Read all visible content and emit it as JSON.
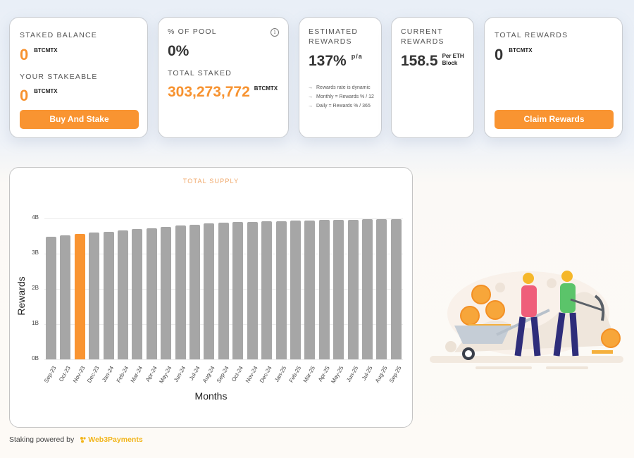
{
  "cards": {
    "staked_balance": {
      "label": "STAKED BALANCE",
      "value": "0",
      "unit": "BTCMTX",
      "stakeable_label": "YOUR STAKEABLE",
      "stakeable_value": "0",
      "stakeable_unit": "BTCMTX",
      "button": "Buy And Stake"
    },
    "pool": {
      "label": "% OF POOL",
      "value": "0%",
      "info_icon": "i",
      "total_label": "TOTAL STAKED",
      "total_value": "303,273,772",
      "total_unit": "BTCMTX"
    },
    "estimated": {
      "label_line1": "ESTIMATED",
      "label_line2": "REWARDS",
      "value": "137%",
      "unit": "p/a",
      "notes": [
        {
          "arrow": "→",
          "text": "Rewards rate is dynamic"
        },
        {
          "arrow": "→",
          "text": "Monthly = Rewards % / 12"
        },
        {
          "arrow": "→",
          "text": "Daily = Rewards % / 365"
        }
      ]
    },
    "current": {
      "label_line1": "CURRENT",
      "label_line2": "REWARDS",
      "value": "158.5",
      "unit_line1": "Per ETH",
      "unit_line2": "Block"
    },
    "total_rewards": {
      "label": "TOTAL REWARDS",
      "value": "0",
      "unit": "BTCMTX",
      "button": "Claim Rewards"
    }
  },
  "colors": {
    "accent": "#f99431",
    "bar": "#a6a6a6",
    "brand": "#f2b51a"
  },
  "chart_data": {
    "type": "bar",
    "title": "TOTAL SUPPLY",
    "xlabel": "Months",
    "ylabel": "Rewards",
    "ylim": [
      0,
      4
    ],
    "yticks": [
      "0B",
      "1B",
      "2B",
      "3B",
      "4B"
    ],
    "grid": true,
    "highlight_index": 2,
    "categories": [
      "Sep-23",
      "Oct-23",
      "Nov-23",
      "Dec-23",
      "Jan-24",
      "Feb-24",
      "Mar-24",
      "Apr-24",
      "May-24",
      "Jun-24",
      "Jul-24",
      "Aug-24",
      "Sep-24",
      "Oct-24",
      "Nov-24",
      "Dec-24",
      "Jan-25",
      "Feb-25",
      "Mar-25",
      "Apr-25",
      "May-25",
      "Jun-25",
      "Jul-25",
      "Aug-25",
      "Sep-25"
    ],
    "values": [
      3.48,
      3.52,
      3.56,
      3.6,
      3.63,
      3.66,
      3.7,
      3.73,
      3.76,
      3.8,
      3.83,
      3.86,
      3.89,
      3.9,
      3.91,
      3.92,
      3.93,
      3.94,
      3.95,
      3.96,
      3.96,
      3.97,
      3.98,
      3.99,
      3.99
    ],
    "unit": "B"
  },
  "footer": {
    "text": "Staking powered by",
    "brand": "Web3Payments"
  }
}
